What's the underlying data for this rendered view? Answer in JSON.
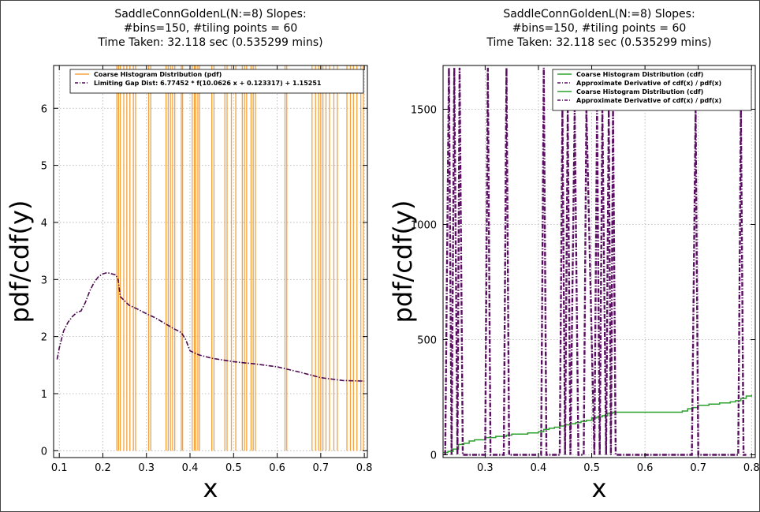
{
  "colors": {
    "pdf_line": "#f5a23c",
    "gap_curve": "#4b0a4f",
    "cdf_line": "#2ca02c",
    "deriv_line": "#5a0d62",
    "grid": "#b0b0b0"
  },
  "chart_data": [
    {
      "type": "line",
      "title_lines": [
        "SaddleConnGoldenL(N:=8) Slopes:",
        "#bins=150, #tiling points = 60",
        "Time Taken: 32.118 sec (0.535299 mins)"
      ],
      "xlabel": "x",
      "ylabel": "pdf/cdf(y)",
      "xlim": [
        0.087,
        0.807
      ],
      "ylim": [
        -0.12,
        6.75
      ],
      "xticks": [
        0.1,
        0.2,
        0.3,
        0.4,
        0.5,
        0.6,
        0.7,
        0.8
      ],
      "yticks": [
        0,
        1,
        2,
        3,
        4,
        5,
        6
      ],
      "grid": true,
      "legend": {
        "placement": "top-right",
        "entries": [
          {
            "label": "Coarse Histogram Distribution (pdf)",
            "style": "solid",
            "color": "#f5a23c"
          },
          {
            "label": "Limiting Gap Dist: 6.77452 * f(10.0626 x + 0.123317) + 1.15251",
            "style": "dashdot",
            "color": "#4b0a4f"
          }
        ]
      },
      "series": [
        {
          "name": "Coarse Histogram Distribution (pdf)",
          "style": "vertical-bars",
          "x": [
            0.232,
            0.236,
            0.24,
            0.248,
            0.255,
            0.262,
            0.27,
            0.275,
            0.305,
            0.31,
            0.345,
            0.35,
            0.355,
            0.36,
            0.365,
            0.38,
            0.383,
            0.405,
            0.41,
            0.413,
            0.418,
            0.422,
            0.45,
            0.455,
            0.48,
            0.485,
            0.495,
            0.505,
            0.52,
            0.525,
            0.53,
            0.54,
            0.545,
            0.55,
            0.618,
            0.622,
            0.68,
            0.688,
            0.695,
            0.7,
            0.705,
            0.712,
            0.72,
            0.73,
            0.738,
            0.76,
            0.768,
            0.775,
            0.783,
            0.792,
            0.798
          ],
          "y": [
            6.75,
            6.75,
            6.75,
            6.75,
            6.75,
            6.75,
            6.75,
            6.75,
            6.75,
            6.75,
            6.75,
            6.75,
            6.75,
            6.75,
            6.75,
            6.75,
            6.75,
            6.75,
            6.75,
            6.75,
            6.75,
            6.75,
            6.75,
            6.75,
            6.75,
            6.75,
            6.75,
            6.75,
            6.75,
            6.75,
            6.75,
            6.75,
            6.75,
            6.75,
            6.75,
            6.75,
            6.75,
            6.75,
            6.75,
            6.75,
            6.75,
            6.75,
            6.75,
            6.75,
            6.75,
            6.75,
            6.75,
            6.75,
            6.75,
            6.75,
            6.75
          ]
        },
        {
          "name": "Limiting Gap Dist: 6.77452 * f(10.0626 x + 0.123317) + 1.15251",
          "style": "dashdot",
          "x": [
            0.095,
            0.1,
            0.11,
            0.12,
            0.13,
            0.14,
            0.15,
            0.16,
            0.17,
            0.18,
            0.19,
            0.2,
            0.21,
            0.22,
            0.23,
            0.235,
            0.24,
            0.26,
            0.28,
            0.3,
            0.32,
            0.34,
            0.36,
            0.38,
            0.39,
            0.4,
            0.42,
            0.45,
            0.5,
            0.55,
            0.6,
            0.65,
            0.7,
            0.75,
            0.8
          ],
          "y": [
            1.6,
            1.8,
            2.1,
            2.25,
            2.35,
            2.42,
            2.45,
            2.6,
            2.8,
            2.95,
            3.05,
            3.1,
            3.12,
            3.1,
            3.08,
            3.0,
            2.7,
            2.55,
            2.48,
            2.4,
            2.33,
            2.24,
            2.15,
            2.07,
            1.95,
            1.75,
            1.68,
            1.62,
            1.56,
            1.52,
            1.47,
            1.38,
            1.28,
            1.23,
            1.22
          ]
        }
      ]
    },
    {
      "type": "line",
      "title_lines": [
        "SaddleConnGoldenL(N:=8) Slopes:",
        "#bins=150, #tiling points = 60",
        "Time Taken: 32.118 sec (0.535299 mins)"
      ],
      "xlabel": "x",
      "ylabel": "pdf/cdf(y)",
      "xlim": [
        0.221,
        0.807
      ],
      "ylim": [
        -12,
        1690
      ],
      "xticks": [
        0.3,
        0.4,
        0.5,
        0.6,
        0.7,
        0.8
      ],
      "yticks": [
        0,
        500,
        1000,
        1500
      ],
      "grid": true,
      "legend": {
        "placement": "top-right",
        "entries": [
          {
            "label": "Coarse Histogram Distribution (cdf)",
            "style": "solid",
            "color": "#2ca02c"
          },
          {
            "label": "Approximate Derivative of cdf(x) / pdf(x)",
            "style": "dashdot",
            "color": "#5a0d62"
          },
          {
            "label": "Coarse Histogram Distribution (cdf)",
            "style": "solid",
            "color": "#2ca02c"
          },
          {
            "label": "Approximate Derivative of cdf(x) / pdf(x)",
            "style": "dashdot",
            "color": "#5a0d62"
          }
        ]
      },
      "series": [
        {
          "name": "Coarse Histogram Distribution (cdf)",
          "style": "step",
          "x": [
            0.222,
            0.23,
            0.24,
            0.25,
            0.26,
            0.27,
            0.28,
            0.3,
            0.32,
            0.34,
            0.35,
            0.38,
            0.4,
            0.41,
            0.42,
            0.43,
            0.44,
            0.45,
            0.46,
            0.47,
            0.48,
            0.49,
            0.5,
            0.51,
            0.52,
            0.53,
            0.54,
            0.6,
            0.67,
            0.68,
            0.69,
            0.7,
            0.72,
            0.74,
            0.76,
            0.77,
            0.78,
            0.79,
            0.8
          ],
          "y": [
            10,
            15,
            25,
            45,
            50,
            60,
            65,
            75,
            80,
            85,
            90,
            95,
            100,
            110,
            115,
            120,
            125,
            130,
            135,
            140,
            145,
            150,
            160,
            165,
            170,
            180,
            185,
            185,
            190,
            200,
            205,
            215,
            220,
            225,
            230,
            235,
            245,
            255,
            260
          ]
        },
        {
          "name": "Approximate Derivative of cdf(x) / pdf(x)",
          "style": "dashdot-spikes",
          "x": [
            0.225,
            0.232,
            0.237,
            0.242,
            0.248,
            0.252,
            0.258,
            0.3,
            0.305,
            0.31,
            0.335,
            0.34,
            0.345,
            0.405,
            0.41,
            0.415,
            0.42,
            0.44,
            0.445,
            0.45,
            0.455,
            0.46,
            0.468,
            0.475,
            0.485,
            0.49,
            0.505,
            0.51,
            0.515,
            0.52,
            0.527,
            0.532,
            0.536,
            0.54,
            0.545,
            0.688,
            0.695,
            0.7,
            0.705,
            0.775,
            0.78,
            0.785,
            0.79
          ],
          "y": [
            0,
            1680,
            0,
            1680,
            0,
            1680,
            0,
            0,
            1680,
            0,
            0,
            1680,
            0,
            0,
            1680,
            0,
            0,
            0,
            1500,
            0,
            1500,
            0,
            1500,
            0,
            0,
            1500,
            0,
            1500,
            0,
            1500,
            0,
            1500,
            0,
            1500,
            0,
            0,
            1500,
            0,
            0,
            0,
            1500,
            0,
            0
          ]
        }
      ]
    }
  ]
}
